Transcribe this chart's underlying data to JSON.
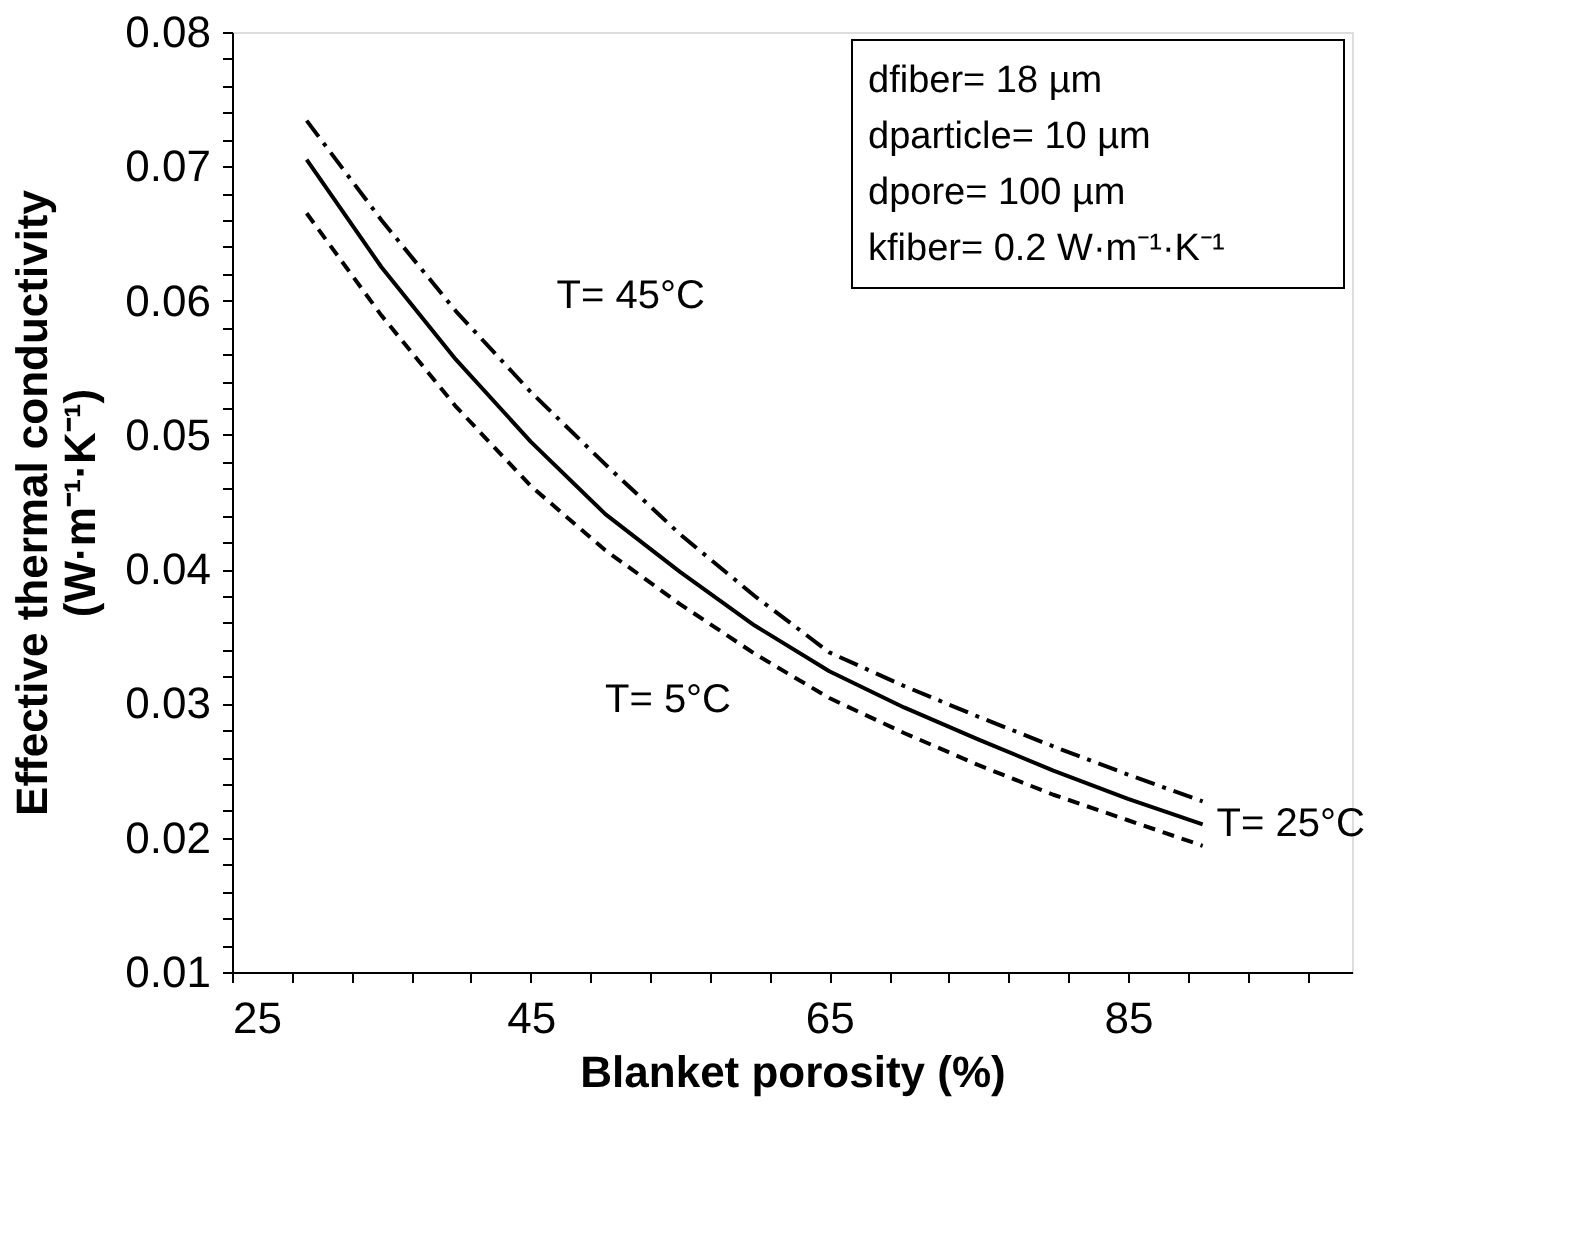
{
  "chart_data": {
    "type": "line",
    "xlabel": "Blanket porosity (%)",
    "ylabel": "Effective thermal conductivity\n(W·m⁻¹·K⁻¹)",
    "x": [
      30,
      35,
      40,
      45,
      50,
      55,
      60,
      65,
      70,
      75,
      80,
      85,
      90
    ],
    "series": [
      {
        "name": "T= 45°C",
        "color": "#000000",
        "line_style": "dashdot",
        "values": [
          0.0734,
          0.066,
          0.0592,
          0.0532,
          0.0478,
          0.0426,
          0.038,
          0.0338,
          0.0313,
          0.029,
          0.0268,
          0.0247,
          0.0227
        ]
      },
      {
        "name": "T= 25°C",
        "color": "#000000",
        "line_style": "solid",
        "values": [
          0.0705,
          0.0625,
          0.0556,
          0.0495,
          0.0441,
          0.0398,
          0.0358,
          0.0324,
          0.0297,
          0.0273,
          0.025,
          0.0229,
          0.021
        ]
      },
      {
        "name": "T= 5°C",
        "color": "#000000",
        "line_style": "dashed",
        "values": [
          0.0665,
          0.0589,
          0.0521,
          0.0462,
          0.0414,
          0.0374,
          0.0337,
          0.0304,
          0.0278,
          0.0254,
          0.0232,
          0.0213,
          0.0194
        ]
      }
    ],
    "annotations": [
      "dfiber= 18 µm",
      "dparticle= 10 µm",
      "dpore= 100 µm",
      "kfiber= 0.2 W·m⁻¹·K⁻¹"
    ],
    "xlim": [
      25,
      100
    ],
    "xticks": [
      25,
      {
        "value": 29,
        "label": null
      },
      {
        "value": 33,
        "label": null
      },
      {
        "value": 37,
        "label": null
      },
      {
        "value": 41,
        "label": null
      },
      45,
      {
        "value": 49,
        "label": null
      },
      {
        "value": 53,
        "label": null
      },
      {
        "value": 57,
        "label": null
      },
      {
        "value": 61,
        "label": null
      },
      65,
      {
        "value": 69,
        "label": null
      },
      {
        "value": 73,
        "label": null
      },
      {
        "value": 77,
        "label": null
      },
      {
        "value": 81,
        "label": null
      },
      85,
      {
        "value": 89,
        "label": null
      },
      {
        "value": 93,
        "label": null
      },
      {
        "value": 97,
        "label": null
      }
    ],
    "ylim": [
      0.01,
      0.08
    ],
    "yticks": [
      0.01,
      {
        "value": 0.012,
        "label": null
      },
      {
        "value": 0.014,
        "label": null
      },
      {
        "value": 0.016,
        "label": null
      },
      {
        "value": 0.018,
        "label": null
      },
      0.02,
      {
        "value": 0.022,
        "label": null
      },
      {
        "value": 0.024,
        "label": null
      },
      {
        "value": 0.026,
        "label": null
      },
      {
        "value": 0.028,
        "label": null
      },
      0.03,
      {
        "value": 0.032,
        "label": null
      },
      {
        "value": 0.034,
        "label": null
      },
      {
        "value": 0.036,
        "label": null
      },
      {
        "value": 0.038,
        "label": null
      },
      0.04,
      {
        "value": 0.042,
        "label": null
      },
      {
        "value": 0.044,
        "label": null
      },
      {
        "value": 0.046,
        "label": null
      },
      {
        "value": 0.048,
        "label": null
      },
      0.05,
      {
        "value": 0.052,
        "label": null
      },
      {
        "value": 0.054,
        "label": null
      },
      {
        "value": 0.056,
        "label": null
      },
      {
        "value": 0.058,
        "label": null
      },
      0.06,
      {
        "value": 0.062,
        "label": null
      },
      {
        "value": 0.064,
        "label": null
      },
      {
        "value": 0.066,
        "label": null
      },
      {
        "value": 0.068,
        "label": null
      },
      0.07,
      {
        "value": 0.072,
        "label": null
      },
      {
        "value": 0.074,
        "label": null
      },
      {
        "value": 0.076,
        "label": null
      },
      {
        "value": 0.078,
        "label": null
      },
      0.08
    ],
    "grid": false,
    "legend": false,
    "marker": "none"
  }
}
